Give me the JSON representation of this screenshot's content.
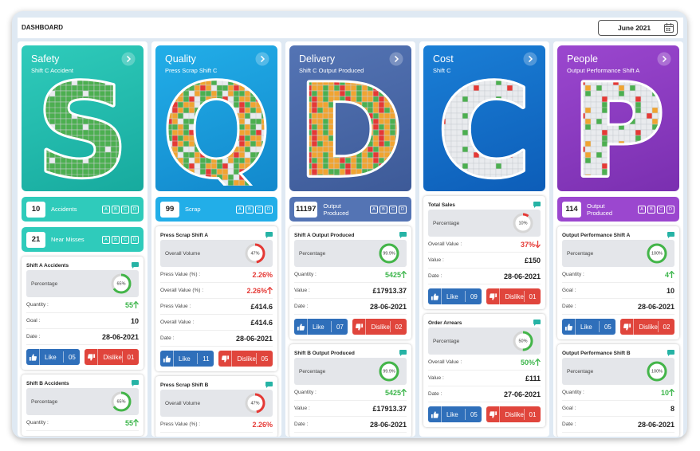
{
  "header": {
    "title": "DASHBOARD",
    "month": "June 2021"
  },
  "shared": {
    "shifts": [
      "A",
      "B",
      "C",
      "D"
    ],
    "like": "Like",
    "dislike": "Dislike"
  },
  "columns": [
    {
      "title": "Safety",
      "subtitle": "Shift C Accident",
      "letter": "S",
      "color": "#2fcbbb",
      "color_dark": "#17aa9e",
      "tiles": [
        {
          "value": "10",
          "label": "Accidents"
        },
        {
          "value": "21",
          "label": "Near Misses"
        }
      ],
      "cards": [
        {
          "title": "Shift A Accidents",
          "gauge_label": "Percentage",
          "percent": 65,
          "percent_label": "65%",
          "gauge_color": "#43b549",
          "rows": [
            {
              "label": "Quantity :",
              "value": "55",
              "trend": "up",
              "color": "#3bb54a"
            },
            {
              "label": "Goal :",
              "value": "10"
            },
            {
              "label": "Date :",
              "value": "28-06-2021"
            }
          ],
          "likes": "05",
          "dislikes": "01"
        },
        {
          "title": "Shift B Accidents",
          "gauge_label": "Percentage",
          "percent": 65,
          "percent_label": "65%",
          "gauge_color": "#43b549",
          "rows": [
            {
              "label": "Quantity :",
              "value": "55",
              "trend": "up",
              "color": "#3bb54a"
            }
          ]
        }
      ]
    },
    {
      "title": "Quality",
      "subtitle": "Press Scrap Shift C",
      "letter": "Q",
      "color": "#22aee8",
      "color_dark": "#1288cc",
      "tiles": [
        {
          "value": "99",
          "label": "Scrap"
        }
      ],
      "cards": [
        {
          "title": "Press Scrap Shift A",
          "gauge_label": "Overall Volume",
          "percent": 47,
          "percent_label": "47%",
          "gauge_color": "#e53935",
          "rows": [
            {
              "label": "Press Value (%) :",
              "value": "2.26%",
              "color": "#e53935"
            },
            {
              "label": "Overall Value (%) :",
              "value": "2.26%",
              "trend": "up",
              "color": "#e53935"
            },
            {
              "label": "Press Value :",
              "value": "£414.6"
            },
            {
              "label": "Overall Value :",
              "value": "£414.6"
            },
            {
              "label": "Date :",
              "value": "28-06-2021"
            }
          ],
          "likes": "11",
          "dislikes": "05"
        },
        {
          "title": "Press Scrap Shift B",
          "gauge_label": "Overall Volume",
          "percent": 47,
          "percent_label": "47%",
          "gauge_color": "#e53935",
          "rows": [
            {
              "label": "Press Value (%) :",
              "value": "2.26%",
              "color": "#e53935"
            }
          ]
        }
      ]
    },
    {
      "title": "Delivery",
      "subtitle": "Shift C Output Produced",
      "letter": "D",
      "color": "#5474b4",
      "color_dark": "#3d5a98",
      "tiles": [
        {
          "value": "11197",
          "label": "Output Produced"
        }
      ],
      "cards": [
        {
          "title": "Shift A Output Produced",
          "gauge_label": "Percentage",
          "percent": 99.9,
          "percent_label": "99.9%",
          "gauge_color": "#43b549",
          "rows": [
            {
              "label": "Quantity :",
              "value": "5425",
              "trend": "up",
              "color": "#3bb54a"
            },
            {
              "label": "Value :",
              "value": "£17913.37"
            },
            {
              "label": "Date :",
              "value": "28-06-2021"
            }
          ],
          "likes": "07",
          "dislikes": "02"
        },
        {
          "title": "Shift B Output Produced",
          "gauge_label": "Percentage",
          "percent": 99.9,
          "percent_label": "99.9%",
          "gauge_color": "#43b549",
          "rows": [
            {
              "label": "Quantity :",
              "value": "5425",
              "trend": "up",
              "color": "#3bb54a"
            },
            {
              "label": "Value :",
              "value": "£17913.37"
            },
            {
              "label": "Date :",
              "value": "28-06-2021"
            }
          ]
        }
      ]
    },
    {
      "title": "Cost",
      "subtitle": "Shift C",
      "letter": "C",
      "color": "#1a7fd6",
      "color_dark": "#0d5db8",
      "tiles": [],
      "cards": [
        {
          "title": "Total Sales",
          "gauge_label": "Percentage",
          "percent": 10,
          "percent_label": "10%",
          "gauge_color": "#e53935",
          "rows": [
            {
              "label": "Overall Value :",
              "value": "37%",
              "trend": "down",
              "color": "#e53935"
            },
            {
              "label": "Value :",
              "value": "£150"
            },
            {
              "label": "Date :",
              "value": "28-06-2021"
            }
          ],
          "likes": "09",
          "dislikes": "01"
        },
        {
          "title": "Order Arrears",
          "gauge_label": "Percentage",
          "percent": 50,
          "percent_label": "50%",
          "gauge_color": "#43b549",
          "rows": [
            {
              "label": "Overall Value :",
              "value": "50%",
              "trend": "up",
              "color": "#3bb54a"
            },
            {
              "label": "Value :",
              "value": "£111"
            },
            {
              "label": "Date :",
              "value": "27-06-2021"
            }
          ],
          "likes": "05",
          "dislikes": "01"
        }
      ]
    },
    {
      "title": "People",
      "subtitle": "Output Performance Shift A",
      "letter": "P",
      "color": "#9b47cf",
      "color_dark": "#7a2fb0",
      "tiles": [
        {
          "value": "114",
          "label": "Output Produced"
        }
      ],
      "cards": [
        {
          "title": "Output Performance Shift A",
          "gauge_label": "Percentage",
          "percent": 100,
          "percent_label": "100%",
          "gauge_color": "#43b549",
          "rows": [
            {
              "label": "Quantity :",
              "value": "4",
              "trend": "up",
              "color": "#3bb54a"
            },
            {
              "label": "Goal :",
              "value": "10"
            },
            {
              "label": "Date :",
              "value": "28-06-2021"
            }
          ],
          "likes": "05",
          "dislikes": "02"
        },
        {
          "title": "Output Performance Shift B",
          "gauge_label": "Percentage",
          "percent": 100,
          "percent_label": "100%",
          "gauge_color": "#43b549",
          "rows": [
            {
              "label": "Quantity :",
              "value": "10",
              "trend": "up",
              "color": "#3bb54a"
            },
            {
              "label": "Goal :",
              "value": "8"
            },
            {
              "label": "Date :",
              "value": "28-06-2021"
            }
          ]
        }
      ]
    }
  ]
}
